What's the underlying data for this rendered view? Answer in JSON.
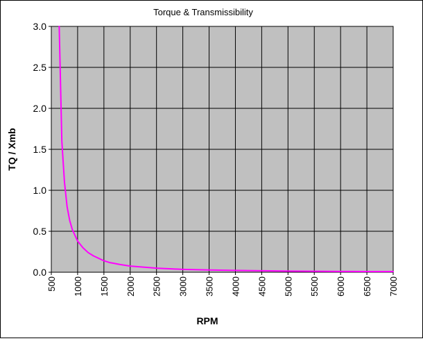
{
  "colors": {
    "plot_background": "#c0c0c0",
    "grid": "#000000",
    "series": "#ff00ff",
    "text": "#000000"
  },
  "chart_data": {
    "type": "line",
    "title": "Torque  & Transmissibility",
    "xlabel": "RPM",
    "ylabel": "TQ / Xmb",
    "xlim": [
      500,
      7000
    ],
    "ylim": [
      0,
      3.0
    ],
    "grid": true,
    "legend": "none",
    "x_ticks": [
      "500",
      "1000",
      "1500",
      "2000",
      "2500",
      "3000",
      "3500",
      "4000",
      "4500",
      "5000",
      "5500",
      "6000",
      "6500",
      "7000"
    ],
    "y_ticks": [
      "0.0",
      "0.5",
      "1.0",
      "1.5",
      "2.0",
      "2.5",
      "3.0"
    ],
    "series": [
      {
        "x": [
          650,
          700,
          750,
          800,
          850,
          900,
          1000,
          1100,
          1200,
          1300,
          1400,
          1500,
          1600,
          1800,
          2000,
          2500,
          3000,
          3500,
          4000,
          4500,
          5000,
          5500,
          6000,
          6500,
          7000
        ],
        "y": [
          3.0,
          1.6,
          1.1,
          0.8,
          0.63,
          0.52,
          0.38,
          0.3,
          0.24,
          0.2,
          0.17,
          0.14,
          0.12,
          0.095,
          0.075,
          0.05,
          0.035,
          0.027,
          0.022,
          0.018,
          0.014,
          0.012,
          0.01,
          0.009,
          0.008
        ]
      }
    ]
  }
}
